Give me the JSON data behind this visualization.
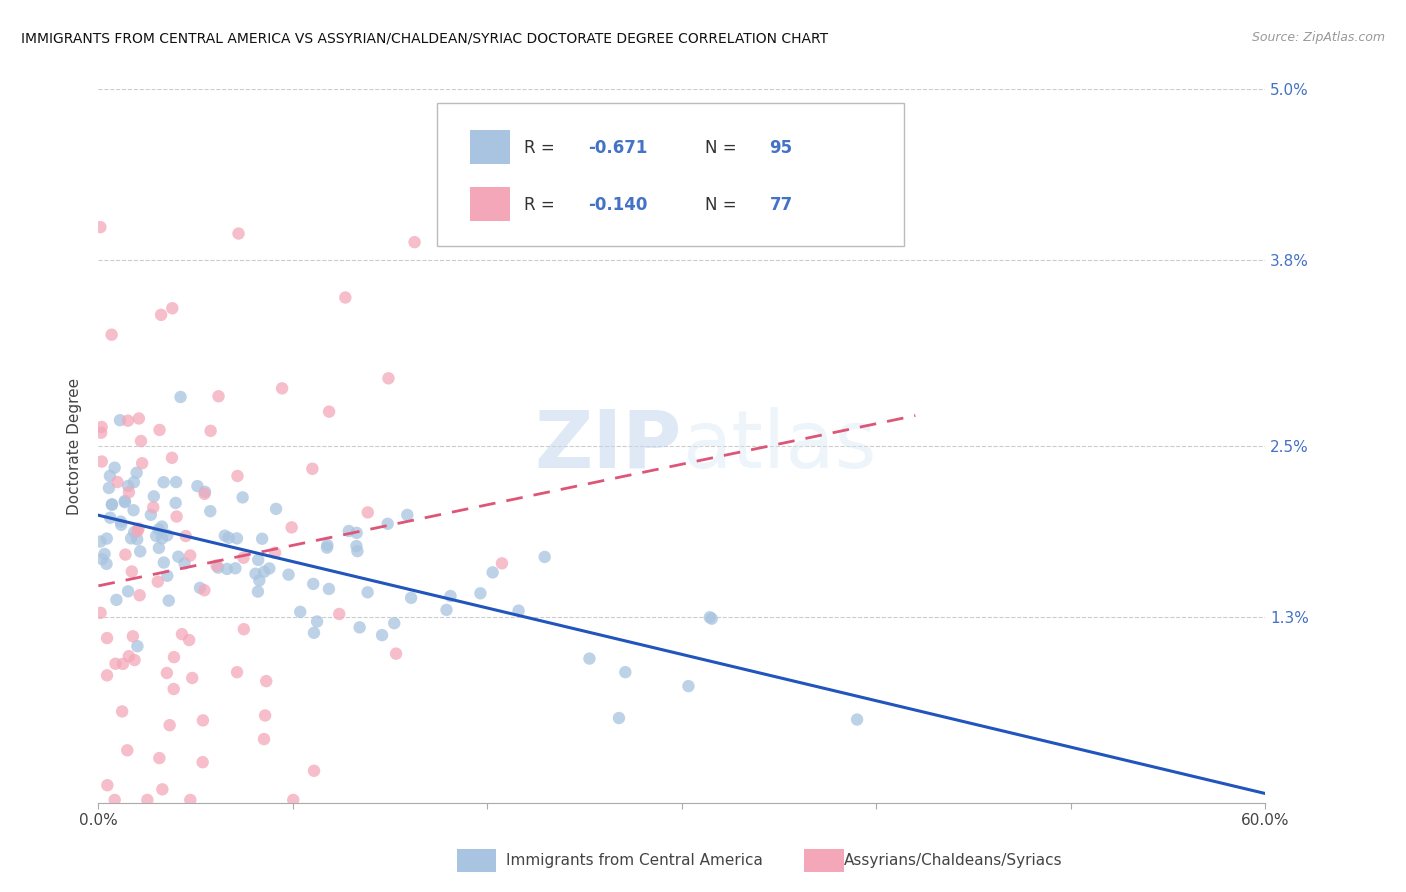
{
  "title": "IMMIGRANTS FROM CENTRAL AMERICA VS ASSYRIAN/CHALDEAN/SYRIAC DOCTORATE DEGREE CORRELATION CHART",
  "source": "Source: ZipAtlas.com",
  "xlabel_blue": "Immigrants from Central America",
  "xlabel_pink": "Assyrians/Chaldeans/Syriacs",
  "ylabel": "Doctorate Degree",
  "watermark_zip": "ZIP",
  "watermark_atlas": "atlas",
  "xlim": [
    0.0,
    0.6
  ],
  "ylim": [
    0.0,
    0.05
  ],
  "ytick_positions": [
    0.0,
    0.013,
    0.025,
    0.038,
    0.05
  ],
  "ytick_labels": [
    "",
    "1.3%",
    "2.5%",
    "3.8%",
    "5.0%"
  ],
  "xtick_positions": [
    0.0,
    0.1,
    0.2,
    0.3,
    0.4,
    0.5,
    0.6
  ],
  "xtick_labels": [
    "0.0%",
    "",
    "",
    "",
    "",
    "",
    "60.0%"
  ],
  "blue_color": "#a8c4e0",
  "pink_color": "#f4a7b9",
  "blue_line_color": "#2255bb",
  "pink_line_color": "#dd5577",
  "grid_color": "#cccccc",
  "title_color": "#111111",
  "source_color": "#999999",
  "right_tick_color": "#4472c4",
  "legend_text_color": "#333333",
  "legend_val_color": "#4472c4",
  "R_blue": -0.671,
  "N_blue": 95,
  "R_pink": -0.14,
  "N_pink": 77,
  "scatter_size": 80,
  "scatter_alpha": 0.75
}
